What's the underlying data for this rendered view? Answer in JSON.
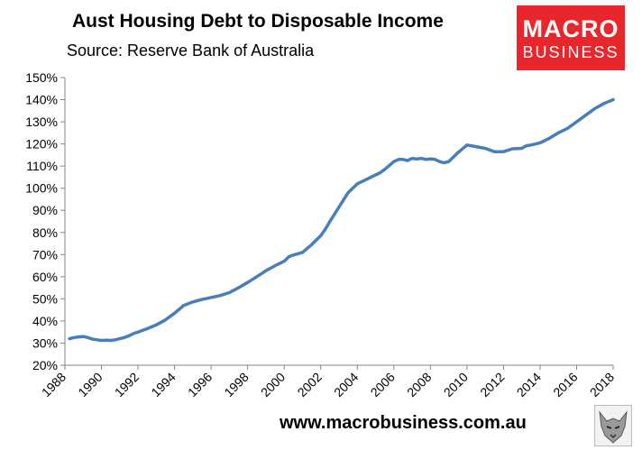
{
  "chart_data": {
    "type": "line",
    "title": "Aust Housing Debt to Disposable Income",
    "subtitle": "Source: Reserve Bank of Australia",
    "xlabel": "",
    "ylabel": "",
    "xlim": [
      1988,
      2018
    ],
    "ylim": [
      20,
      150
    ],
    "grid": false,
    "legend": "none",
    "y_ticks": [
      "20%",
      "30%",
      "40%",
      "50%",
      "60%",
      "70%",
      "80%",
      "90%",
      "100%",
      "110%",
      "120%",
      "130%",
      "140%",
      "150%"
    ],
    "x_ticks": [
      "1988",
      "1990",
      "1992",
      "1994",
      "1996",
      "1998",
      "2000",
      "2002",
      "2004",
      "2006",
      "2008",
      "2010",
      "2012",
      "2014",
      "2016",
      "2018"
    ],
    "series": [
      {
        "color": "#4a7ebb",
        "x": [
          1988.25,
          1988.5,
          1988.75,
          1989,
          1989.25,
          1989.5,
          1989.75,
          1990,
          1990.25,
          1990.5,
          1990.75,
          1991,
          1991.25,
          1991.5,
          1991.75,
          1992,
          1992.5,
          1993,
          1993.5,
          1994,
          1994.5,
          1995,
          1995.5,
          1996,
          1996.5,
          1997,
          1997.5,
          1998,
          1998.5,
          1999,
          1999.5,
          2000,
          2000.25,
          2000.5,
          2001,
          2001.5,
          2002,
          2002.25,
          2002.5,
          2003,
          2003.5,
          2004,
          2004.5,
          2005,
          2005.25,
          2005.5,
          2006,
          2006.25,
          2006.5,
          2006.75,
          2007,
          2007.25,
          2007.5,
          2007.75,
          2008,
          2008.25,
          2008.5,
          2008.75,
          2009,
          2009.5,
          2010,
          2010.5,
          2011,
          2011.5,
          2012,
          2012.5,
          2013,
          2013.25,
          2013.5,
          2014,
          2014.5,
          2015,
          2015.5,
          2016,
          2016.5,
          2017,
          2017.5,
          2018
        ],
        "values": [
          32,
          32.5,
          32.8,
          33,
          32.5,
          31.8,
          31.5,
          31.2,
          31.3,
          31.2,
          31.5,
          32,
          32.5,
          33.3,
          34.3,
          35,
          36.5,
          38.2,
          40.5,
          43.5,
          47,
          48.6,
          49.7,
          50.6,
          51.5,
          52.8,
          55,
          57.4,
          60,
          62.7,
          65,
          67,
          69,
          69.8,
          71,
          74.5,
          78.5,
          81.5,
          85,
          91.5,
          98,
          102,
          104,
          106,
          107,
          108.5,
          112,
          113,
          113,
          112.5,
          113.5,
          113.2,
          113.5,
          113,
          113.2,
          113,
          112,
          111.5,
          112,
          116,
          119.5,
          118.8,
          118,
          116.5,
          116.5,
          117.8,
          118,
          119.2,
          119.5,
          120.5,
          122.5,
          125,
          127,
          130,
          133,
          136,
          138.3,
          140
        ]
      }
    ]
  },
  "logo": {
    "line1": "MACRO",
    "line2": "BUSINESS"
  },
  "footer": {
    "url": "www.macrobusiness.com.au"
  }
}
